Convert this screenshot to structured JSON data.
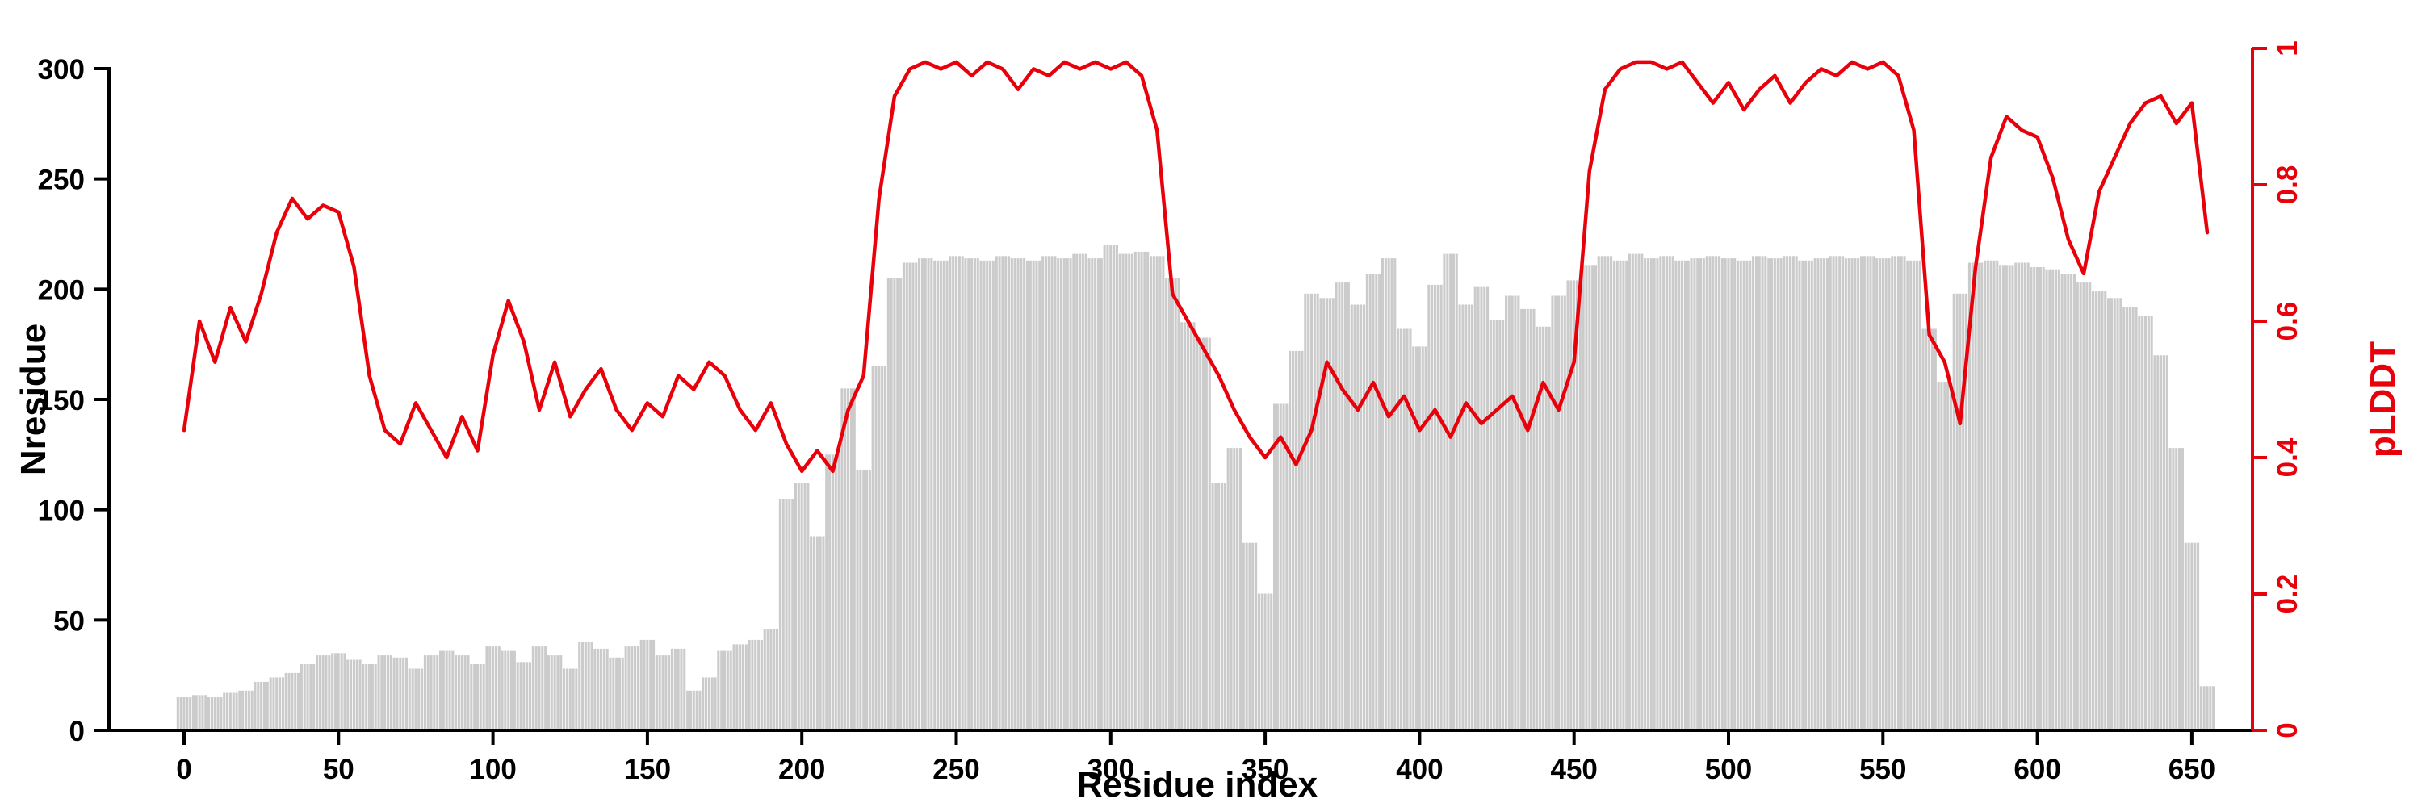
{
  "figure": {
    "background": "#ffffff"
  },
  "chart_data": {
    "type": "bar+line",
    "title": "",
    "xlabel": "Residue index",
    "ylabel_left": "Nresidue",
    "ylabel_right": "pLDDT",
    "bar_color": "#cbcbcb",
    "line_color": "#e8000b",
    "left_axis": {
      "range": [
        0,
        300
      ],
      "ticks": [
        0,
        50,
        100,
        150,
        200,
        250,
        300
      ],
      "color": "#000000"
    },
    "right_axis": {
      "range": [
        0,
        1
      ],
      "ticks": [
        0,
        0.2,
        0.4,
        0.6,
        0.8,
        1
      ],
      "color": "#e8000b"
    },
    "x_ticks": [
      0,
      50,
      100,
      150,
      200,
      250,
      300,
      350,
      400,
      450,
      500,
      550,
      600,
      650
    ],
    "x_range": [
      0,
      655
    ],
    "grid": false,
    "legend": "none",
    "x": [
      0,
      5,
      10,
      15,
      20,
      25,
      30,
      35,
      40,
      45,
      50,
      55,
      60,
      65,
      70,
      75,
      80,
      85,
      90,
      95,
      100,
      105,
      110,
      115,
      120,
      125,
      130,
      135,
      140,
      145,
      150,
      155,
      160,
      165,
      170,
      175,
      180,
      185,
      190,
      195,
      200,
      205,
      210,
      215,
      220,
      225,
      230,
      235,
      240,
      245,
      250,
      255,
      260,
      265,
      270,
      275,
      280,
      285,
      290,
      295,
      300,
      305,
      310,
      315,
      320,
      325,
      330,
      335,
      340,
      345,
      350,
      355,
      360,
      365,
      370,
      375,
      380,
      385,
      390,
      395,
      400,
      405,
      410,
      415,
      420,
      425,
      430,
      435,
      440,
      445,
      450,
      455,
      460,
      465,
      470,
      475,
      480,
      485,
      490,
      495,
      500,
      505,
      510,
      515,
      520,
      525,
      530,
      535,
      540,
      545,
      550,
      555,
      560,
      565,
      570,
      575,
      580,
      585,
      590,
      595,
      600,
      605,
      610,
      615,
      620,
      625,
      630,
      635,
      640,
      645,
      650,
      655
    ],
    "series": [
      {
        "name": "Nresidue",
        "type": "bar",
        "axis": "left",
        "values": [
          15,
          16,
          15,
          17,
          18,
          22,
          24,
          26,
          30,
          34,
          35,
          32,
          30,
          34,
          33,
          28,
          34,
          36,
          34,
          30,
          38,
          36,
          31,
          38,
          34,
          28,
          40,
          37,
          33,
          38,
          41,
          34,
          37,
          18,
          24,
          36,
          39,
          41,
          46,
          105,
          112,
          88,
          125,
          155,
          118,
          165,
          205,
          212,
          214,
          213,
          215,
          214,
          213,
          215,
          214,
          213,
          215,
          214,
          216,
          214,
          220,
          216,
          217,
          215,
          205,
          185,
          178,
          112,
          128,
          85,
          62,
          148,
          172,
          198,
          196,
          203,
          193,
          207,
          214,
          182,
          174,
          202,
          216,
          193,
          201,
          186,
          197,
          191,
          183,
          197,
          204,
          211,
          215,
          213,
          216,
          214,
          215,
          213,
          214,
          215,
          214,
          213,
          215,
          214,
          215,
          213,
          214,
          215,
          214,
          215,
          214,
          215,
          213,
          182,
          158,
          198,
          212,
          213,
          211,
          212,
          210,
          209,
          207,
          203,
          199,
          196,
          192,
          188,
          170,
          128,
          85,
          20
        ]
      },
      {
        "name": "pLDDT",
        "type": "line",
        "axis": "right",
        "values": [
          0.44,
          0.6,
          0.54,
          0.62,
          0.57,
          0.64,
          0.73,
          0.78,
          0.75,
          0.77,
          0.76,
          0.68,
          0.52,
          0.44,
          0.42,
          0.48,
          0.44,
          0.4,
          0.46,
          0.41,
          0.55,
          0.63,
          0.57,
          0.47,
          0.54,
          0.46,
          0.5,
          0.53,
          0.47,
          0.44,
          0.48,
          0.46,
          0.52,
          0.5,
          0.54,
          0.52,
          0.47,
          0.44,
          0.48,
          0.42,
          0.38,
          0.41,
          0.38,
          0.47,
          0.52,
          0.78,
          0.93,
          0.97,
          0.98,
          0.97,
          0.98,
          0.96,
          0.98,
          0.97,
          0.94,
          0.97,
          0.96,
          0.98,
          0.97,
          0.98,
          0.97,
          0.98,
          0.96,
          0.88,
          0.64,
          0.6,
          0.56,
          0.52,
          0.47,
          0.43,
          0.4,
          0.43,
          0.39,
          0.44,
          0.54,
          0.5,
          0.47,
          0.51,
          0.46,
          0.49,
          0.44,
          0.47,
          0.43,
          0.48,
          0.45,
          0.47,
          0.49,
          0.44,
          0.51,
          0.47,
          0.54,
          0.82,
          0.94,
          0.97,
          0.98,
          0.98,
          0.97,
          0.98,
          0.95,
          0.92,
          0.95,
          0.91,
          0.94,
          0.96,
          0.92,
          0.95,
          0.97,
          0.96,
          0.98,
          0.97,
          0.98,
          0.96,
          0.88,
          0.58,
          0.54,
          0.45,
          0.68,
          0.84,
          0.9,
          0.88,
          0.87,
          0.81,
          0.72,
          0.67,
          0.79,
          0.84,
          0.89,
          0.92,
          0.93,
          0.89,
          0.92,
          0.73
        ]
      }
    ]
  }
}
